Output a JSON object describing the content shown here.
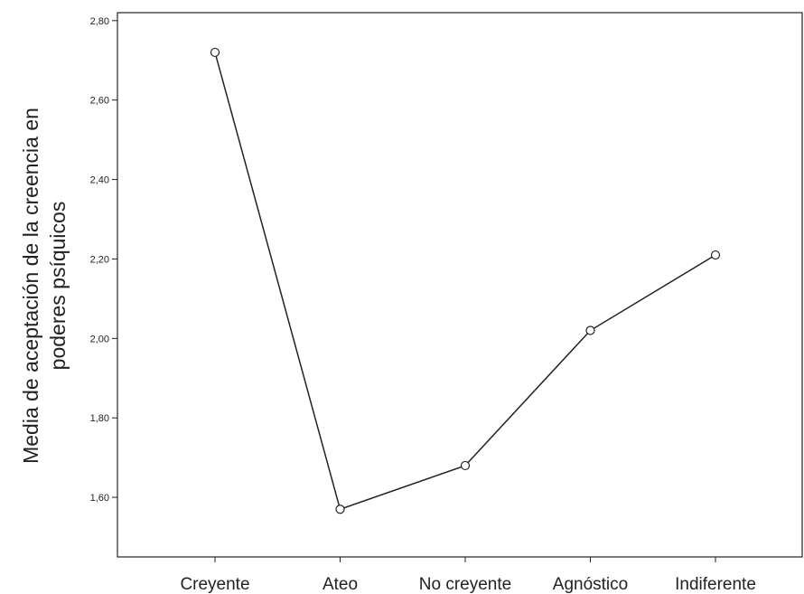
{
  "chart_data": {
    "type": "line",
    "categories": [
      "Creyente",
      "Ateo",
      "No creyente",
      "Agnóstico",
      "Indiferente"
    ],
    "series": [
      {
        "values": [
          2.72,
          1.57,
          1.68,
          2.02,
          2.21
        ]
      }
    ],
    "ylabel_line1": "Media de aceptación de la creencia en",
    "ylabel_line2": "poderes psíquicos",
    "y_ticks": [
      "2,80",
      "2,60",
      "2,40",
      "2,20",
      "2,00",
      "1,80",
      "1,60"
    ],
    "y_tick_values": [
      2.8,
      2.6,
      2.4,
      2.2,
      2.0,
      1.8,
      1.6
    ],
    "ylim": [
      1.45,
      2.82
    ],
    "grid": false,
    "legend": "none",
    "line_color": "#222222",
    "marker": "open-circle"
  }
}
